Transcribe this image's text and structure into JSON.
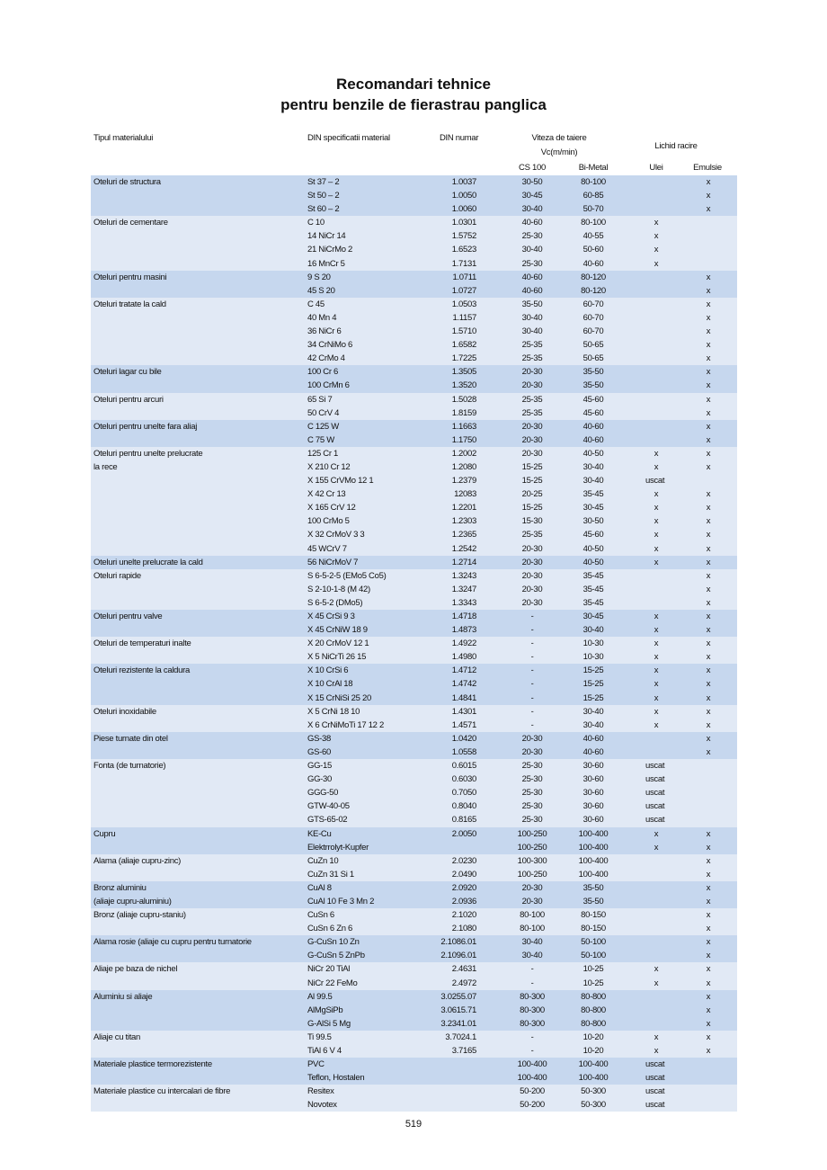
{
  "title": {
    "line1": "Recomandari tehnice",
    "line2": "pentru benzile de fierastrau panglica"
  },
  "header": {
    "material_type": "Tipul materialului",
    "din_spec": "DIN specificatii material",
    "din_number": "DIN numar",
    "cutting_speed": "Viteza de taiere",
    "speed_unit": "Vc(m/min)",
    "coolant": "Lichid racire",
    "cs100": "CS 100",
    "bimetal": "Bi-Metal",
    "oil": "Ulei",
    "emulsion": "Emulsie"
  },
  "colors": {
    "dark_row": "#c6d7ee",
    "light_row": "#e1e9f5"
  },
  "groups": [
    {
      "label": [
        "Oteluri de structura"
      ],
      "rows": [
        [
          "St 37 – 2",
          "1.0037",
          "30-50",
          "80-100",
          "",
          "x"
        ],
        [
          "St 50 – 2",
          "1.0050",
          "30-45",
          "60-85",
          "",
          "x"
        ],
        [
          "St 60 – 2",
          "1.0060",
          "30-40",
          "50-70",
          "",
          "x"
        ]
      ]
    },
    {
      "label": [
        "Oteluri de cementare"
      ],
      "rows": [
        [
          "C 10",
          "1.0301",
          "40-60",
          "80-100",
          "x",
          ""
        ],
        [
          "14 NiCr 14",
          "1.5752",
          "25-30",
          "40-55",
          "x",
          ""
        ],
        [
          "21 NiCrMo 2",
          "1.6523",
          "30-40",
          "50-60",
          "x",
          ""
        ],
        [
          "16 MnCr 5",
          "1.7131",
          "25-30",
          "40-60",
          "x",
          ""
        ]
      ]
    },
    {
      "label": [
        "Oteluri pentru masini"
      ],
      "rows": [
        [
          "9 S 20",
          "1.0711",
          "40-60",
          "80-120",
          "",
          "x"
        ],
        [
          "45 S 20",
          "1.0727",
          "40-60",
          "80-120",
          "",
          "x"
        ]
      ]
    },
    {
      "label": [
        "Oteluri tratate la cald"
      ],
      "rows": [
        [
          "C 45",
          "1.0503",
          "35-50",
          "60-70",
          "",
          "x"
        ],
        [
          "40 Mn 4",
          "1.1157",
          "30-40",
          "60-70",
          "",
          "x"
        ],
        [
          "36 NiCr 6",
          "1.5710",
          "30-40",
          "60-70",
          "",
          "x"
        ],
        [
          "34 CrNiMo 6",
          "1.6582",
          "25-35",
          "50-65",
          "",
          "x"
        ],
        [
          "42 CrMo 4",
          "1.7225",
          "25-35",
          "50-65",
          "",
          "x"
        ]
      ]
    },
    {
      "label": [
        "Oteluri lagar cu bile"
      ],
      "rows": [
        [
          "100 Cr 6",
          "1.3505",
          "20-30",
          "35-50",
          "",
          "x"
        ],
        [
          "100 CrMn 6",
          "1.3520",
          "20-30",
          "35-50",
          "",
          "x"
        ]
      ]
    },
    {
      "label": [
        "Oteluri pentru arcuri"
      ],
      "rows": [
        [
          "65 Si 7",
          "1.5028",
          "25-35",
          "45-60",
          "",
          "x"
        ],
        [
          "50 CrV 4",
          "1.8159",
          "25-35",
          "45-60",
          "",
          "x"
        ]
      ]
    },
    {
      "label": [
        "Oteluri pentru unelte fara aliaj"
      ],
      "rows": [
        [
          "C 125 W",
          "1.1663",
          "20-30",
          "40-60",
          "",
          "x"
        ],
        [
          "C 75 W",
          "1.1750",
          "20-30",
          "40-60",
          "",
          "x"
        ]
      ]
    },
    {
      "label": [
        "Oteluri pentru unelte prelucrate",
        "la rece"
      ],
      "rows": [
        [
          "125 Cr 1",
          "1.2002",
          "20-30",
          "40-50",
          "x",
          "x"
        ],
        [
          "X 210 Cr 12",
          "1.2080",
          "15-25",
          "30-40",
          "x",
          "x"
        ],
        [
          "X 155 CrVMo 12 1",
          "1.2379",
          "15-25",
          "30-40",
          "uscat",
          ""
        ],
        [
          "X 42 Cr 13",
          "12083",
          "20-25",
          "35-45",
          "x",
          "x"
        ],
        [
          "X 165 CrV 12",
          "1.2201",
          "15-25",
          "30-45",
          "x",
          "x"
        ],
        [
          "100 CrMo 5",
          "1.2303",
          "15-30",
          "30-50",
          "x",
          "x"
        ],
        [
          "X 32 CrMoV 3 3",
          "1.2365",
          "25-35",
          "45-60",
          "x",
          "x"
        ],
        [
          "45 WCrV 7",
          "1.2542",
          "20-30",
          "40-50",
          "x",
          "x"
        ]
      ]
    },
    {
      "label": [
        "Oteluri unelte prelucrate la cald"
      ],
      "rows": [
        [
          "56 NiCrMoV 7",
          "1.2714",
          "20-30",
          "40-50",
          "x",
          "x"
        ]
      ]
    },
    {
      "label": [
        "Oteluri rapide"
      ],
      "rows": [
        [
          "S 6-5-2-5 (EMo5 Co5)",
          "1.3243",
          "20-30",
          "35-45",
          "",
          "x"
        ],
        [
          "S 2-10-1-8 (M 42)",
          "1.3247",
          "20-30",
          "35-45",
          "",
          "x"
        ],
        [
          "S 6-5-2 (DMo5)",
          "1.3343",
          "20-30",
          "35-45",
          "",
          "x"
        ]
      ]
    },
    {
      "label": [
        "Oteluri pentru valve"
      ],
      "rows": [
        [
          "X 45 CrSi 9 3",
          "1.4718",
          "-",
          "30-45",
          "x",
          "x"
        ],
        [
          "X 45 CrNiW 18 9",
          "1.4873",
          "-",
          "30-40",
          "x",
          "x"
        ]
      ]
    },
    {
      "label": [
        "Oteluri de temperaturi inalte"
      ],
      "rows": [
        [
          "X 20 CrMoV 12 1",
          "1.4922",
          "-",
          "10-30",
          "x",
          "x"
        ],
        [
          "X 5 NiCrTi 26 15",
          "1.4980",
          "-",
          "10-30",
          "x",
          "x"
        ]
      ]
    },
    {
      "label": [
        "Oteluri rezistente la caldura"
      ],
      "rows": [
        [
          "X 10 CrSi 6",
          "1.4712",
          "-",
          "15-25",
          "x",
          "x"
        ],
        [
          "X 10 CrAl 18",
          "1.4742",
          "-",
          "15-25",
          "x",
          "x"
        ],
        [
          "X 15 CrNiSi 25 20",
          "1.4841",
          "-",
          "15-25",
          "x",
          "x"
        ]
      ]
    },
    {
      "label": [
        "Oteluri inoxidabile"
      ],
      "rows": [
        [
          "X 5 CrNi 18 10",
          "1.4301",
          "-",
          "30-40",
          "x",
          "x"
        ],
        [
          "X 6 CrNiMoTi 17 12 2",
          "1.4571",
          "-",
          "30-40",
          "x",
          "x"
        ]
      ]
    },
    {
      "label": [
        "Piese turnate din otel"
      ],
      "rows": [
        [
          "GS-38",
          "1.0420",
          "20-30",
          "40-60",
          "",
          "x"
        ],
        [
          "GS-60",
          "1.0558",
          "20-30",
          "40-60",
          "",
          "x"
        ]
      ]
    },
    {
      "label": [
        "Fonta (de turnatorie)"
      ],
      "rows": [
        [
          "GG-15",
          "0.6015",
          "25-30",
          "30-60",
          "uscat",
          ""
        ],
        [
          "GG-30",
          "0.6030",
          "25-30",
          "30-60",
          "uscat",
          ""
        ],
        [
          "GGG-50",
          "0.7050",
          "25-30",
          "30-60",
          "uscat",
          ""
        ],
        [
          "GTW-40-05",
          "0.8040",
          "25-30",
          "30-60",
          "uscat",
          ""
        ],
        [
          "GTS-65-02",
          "0.8165",
          "25-30",
          "30-60",
          "uscat",
          ""
        ]
      ]
    },
    {
      "label": [
        "Cupru"
      ],
      "rows": [
        [
          "KE-Cu",
          "2.0050",
          "100-250",
          "100-400",
          "x",
          "x"
        ],
        [
          "Elektrrolyt-Kupfer",
          "",
          "100-250",
          "100-400",
          "x",
          "x"
        ]
      ]
    },
    {
      "label": [
        "Alama (aliaje cupru-zinc)"
      ],
      "rows": [
        [
          "CuZn 10",
          "2.0230",
          "100-300",
          "100-400",
          "",
          "x"
        ],
        [
          "CuZn 31 Si 1",
          "2.0490",
          "100-250",
          "100-400",
          "",
          "x"
        ]
      ]
    },
    {
      "label": [
        "Bronz aluminiu",
        "(aliaje cupru-aluminiu)"
      ],
      "rows": [
        [
          "CuAl 8",
          "2.0920",
          "20-30",
          "35-50",
          "",
          "x"
        ],
        [
          "CuAl 10 Fe 3 Mn 2",
          "2.0936",
          "20-30",
          "35-50",
          "",
          "x"
        ]
      ]
    },
    {
      "label": [
        "Bronz (aliaje cupru-staniu)"
      ],
      "rows": [
        [
          "CuSn 6",
          "2.1020",
          "80-100",
          "80-150",
          "",
          "x"
        ],
        [
          "CuSn 6 Zn 6",
          "2.1080",
          "80-100",
          "80-150",
          "",
          "x"
        ]
      ]
    },
    {
      "label": [
        "Alama rosie (aliaje cu cupru pentru turnatorie"
      ],
      "rows": [
        [
          "G-CuSn 10 Zn",
          "2.1086.01",
          "30-40",
          "50-100",
          "",
          "x"
        ],
        [
          "G-CuSn 5 ZnPb",
          "2.1096.01",
          "30-40",
          "50-100",
          "",
          "x"
        ]
      ]
    },
    {
      "label": [
        "Aliaje pe baza de nichel"
      ],
      "rows": [
        [
          "NiCr 20 TiAl",
          "2.4631",
          "-",
          "10-25",
          "x",
          "x"
        ],
        [
          "NiCr 22 FeMo",
          "2.4972",
          "-",
          "10-25",
          "x",
          "x"
        ]
      ]
    },
    {
      "label": [
        "Aluminiu si aliaje"
      ],
      "rows": [
        [
          "Al 99.5",
          "3.0255.07",
          "80-300",
          "80-800",
          "",
          "x"
        ],
        [
          "AlMgSiPb",
          "3.0615.71",
          "80-300",
          "80-800",
          "",
          "x"
        ],
        [
          "G-AlSi 5 Mg",
          "3.2341.01",
          "80-300",
          "80-800",
          "",
          "x"
        ]
      ]
    },
    {
      "label": [
        "Aliaje cu titan"
      ],
      "rows": [
        [
          "Ti 99.5",
          "3.7024.1",
          "-",
          "10-20",
          "x",
          "x"
        ],
        [
          "TiAl 6 V 4",
          "3.7165",
          "-",
          "10-20",
          "x",
          "x"
        ]
      ]
    },
    {
      "label": [
        "Materiale plastice termorezistente"
      ],
      "rows": [
        [
          "PVC",
          "",
          "100-400",
          "100-400",
          "uscat",
          ""
        ],
        [
          "Teflon, Hostalen",
          "",
          "100-400",
          "100-400",
          "uscat",
          ""
        ]
      ]
    },
    {
      "label": [
        "Materiale plastice cu intercalari de fibre"
      ],
      "rows": [
        [
          "Resitex",
          "",
          "50-200",
          "50-300",
          "uscat",
          ""
        ],
        [
          "Novotex",
          "",
          "50-200",
          "50-300",
          "uscat",
          ""
        ]
      ]
    }
  ],
  "page_number": "519"
}
